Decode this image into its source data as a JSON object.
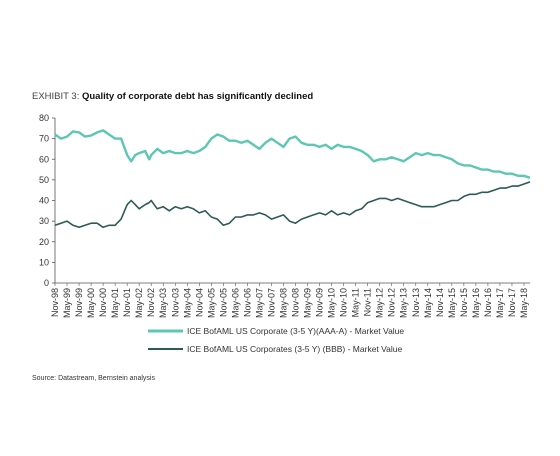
{
  "header": {
    "exhibit_label": "EXHIBIT 3:",
    "exhibit_title": "Quality of corporate debt has significantly declined"
  },
  "source": "Source: Datastream, Bernstein analysis",
  "chart_data": {
    "type": "line",
    "ylim": [
      0,
      80
    ],
    "yticks": [
      0,
      10,
      20,
      30,
      40,
      50,
      60,
      70,
      80
    ],
    "xrange": [
      "1998-11",
      "2018-08"
    ],
    "xticks": [
      "Nov-98",
      "May-99",
      "Nov-99",
      "May-00",
      "Nov-00",
      "May-01",
      "Nov-01",
      "May-02",
      "Nov-02",
      "May-03",
      "Nov-03",
      "May-04",
      "Nov-04",
      "May-05",
      "Nov-05",
      "May-06",
      "Nov-06",
      "May-07",
      "Nov-07",
      "May-08",
      "Nov-08",
      "May-09",
      "Nov-09",
      "May-10",
      "Nov-10",
      "May-11",
      "Nov-11",
      "May-12",
      "Nov-12",
      "May-13",
      "Nov-13",
      "May-14",
      "Nov-14",
      "May-15",
      "Nov-15",
      "May-16",
      "Nov-16",
      "May-17",
      "Nov-17",
      "May-18"
    ],
    "grid": false,
    "legend_position": "bottom",
    "series": [
      {
        "name": "ICE BofAML US Corporate (3-5 Y)(AAA-A) - Market Value",
        "color": "#5cc7b3",
        "points": [
          [
            "1998-11",
            72
          ],
          [
            "1999-02",
            70
          ],
          [
            "1999-05",
            71
          ],
          [
            "1999-08",
            73.5
          ],
          [
            "1999-11",
            73
          ],
          [
            "2000-02",
            71
          ],
          [
            "2000-05",
            71.5
          ],
          [
            "2000-08",
            73
          ],
          [
            "2000-11",
            74
          ],
          [
            "2001-02",
            72
          ],
          [
            "2001-05",
            70
          ],
          [
            "2001-08",
            70
          ],
          [
            "2001-11",
            62
          ],
          [
            "2002-01",
            59
          ],
          [
            "2002-03",
            62
          ],
          [
            "2002-05",
            63
          ],
          [
            "2002-08",
            64
          ],
          [
            "2002-10",
            60
          ],
          [
            "2002-11",
            62
          ],
          [
            "2003-02",
            65
          ],
          [
            "2003-05",
            63
          ],
          [
            "2003-08",
            64
          ],
          [
            "2003-11",
            63
          ],
          [
            "2004-02",
            63
          ],
          [
            "2004-05",
            64
          ],
          [
            "2004-08",
            63
          ],
          [
            "2004-11",
            64
          ],
          [
            "2005-02",
            66
          ],
          [
            "2005-05",
            70
          ],
          [
            "2005-08",
            72
          ],
          [
            "2005-11",
            71
          ],
          [
            "2006-02",
            69
          ],
          [
            "2006-05",
            69
          ],
          [
            "2006-08",
            68
          ],
          [
            "2006-11",
            69
          ],
          [
            "2007-02",
            67
          ],
          [
            "2007-05",
            65
          ],
          [
            "2007-08",
            68
          ],
          [
            "2007-11",
            70
          ],
          [
            "2008-02",
            68
          ],
          [
            "2008-05",
            66
          ],
          [
            "2008-08",
            70
          ],
          [
            "2008-11",
            71
          ],
          [
            "2009-02",
            68
          ],
          [
            "2009-05",
            67
          ],
          [
            "2009-08",
            67
          ],
          [
            "2009-11",
            66
          ],
          [
            "2010-02",
            67
          ],
          [
            "2010-05",
            65
          ],
          [
            "2010-08",
            67
          ],
          [
            "2010-11",
            66
          ],
          [
            "2011-02",
            66
          ],
          [
            "2011-05",
            65
          ],
          [
            "2011-08",
            64
          ],
          [
            "2011-11",
            62
          ],
          [
            "2012-02",
            59
          ],
          [
            "2012-05",
            60
          ],
          [
            "2012-08",
            60
          ],
          [
            "2012-11",
            61
          ],
          [
            "2013-02",
            60
          ],
          [
            "2013-05",
            59
          ],
          [
            "2013-08",
            61
          ],
          [
            "2013-11",
            63
          ],
          [
            "2014-02",
            62
          ],
          [
            "2014-05",
            63
          ],
          [
            "2014-08",
            62
          ],
          [
            "2014-11",
            62
          ],
          [
            "2015-02",
            61
          ],
          [
            "2015-05",
            60
          ],
          [
            "2015-08",
            58
          ],
          [
            "2015-11",
            57
          ],
          [
            "2016-02",
            57
          ],
          [
            "2016-05",
            56
          ],
          [
            "2016-08",
            55
          ],
          [
            "2016-11",
            55
          ],
          [
            "2017-02",
            54
          ],
          [
            "2017-05",
            54
          ],
          [
            "2017-08",
            53
          ],
          [
            "2017-11",
            53
          ],
          [
            "2018-02",
            52
          ],
          [
            "2018-05",
            52
          ],
          [
            "2018-08",
            51
          ]
        ]
      },
      {
        "name": "ICE BofAML US Corporates (3-5 Y) (BBB) - Market Value",
        "color": "#2d5b55",
        "points": [
          [
            "1998-11",
            28
          ],
          [
            "1999-02",
            29
          ],
          [
            "1999-05",
            30
          ],
          [
            "1999-08",
            28
          ],
          [
            "1999-11",
            27
          ],
          [
            "2000-02",
            28
          ],
          [
            "2000-05",
            29
          ],
          [
            "2000-08",
            29
          ],
          [
            "2000-11",
            27
          ],
          [
            "2001-02",
            28
          ],
          [
            "2001-05",
            28
          ],
          [
            "2001-08",
            31
          ],
          [
            "2001-11",
            38
          ],
          [
            "2002-01",
            40
          ],
          [
            "2002-03",
            38
          ],
          [
            "2002-05",
            36
          ],
          [
            "2002-08",
            38
          ],
          [
            "2002-10",
            39
          ],
          [
            "2002-11",
            40
          ],
          [
            "2003-02",
            36
          ],
          [
            "2003-05",
            37
          ],
          [
            "2003-08",
            35
          ],
          [
            "2003-11",
            37
          ],
          [
            "2004-02",
            36
          ],
          [
            "2004-05",
            37
          ],
          [
            "2004-08",
            36
          ],
          [
            "2004-11",
            34
          ],
          [
            "2005-02",
            35
          ],
          [
            "2005-05",
            32
          ],
          [
            "2005-08",
            31
          ],
          [
            "2005-11",
            28
          ],
          [
            "2006-02",
            29
          ],
          [
            "2006-05",
            32
          ],
          [
            "2006-08",
            32
          ],
          [
            "2006-11",
            33
          ],
          [
            "2007-02",
            33
          ],
          [
            "2007-05",
            34
          ],
          [
            "2007-08",
            33
          ],
          [
            "2007-11",
            31
          ],
          [
            "2008-02",
            32
          ],
          [
            "2008-05",
            33
          ],
          [
            "2008-08",
            30
          ],
          [
            "2008-11",
            29
          ],
          [
            "2009-02",
            31
          ],
          [
            "2009-05",
            32
          ],
          [
            "2009-08",
            33
          ],
          [
            "2009-11",
            34
          ],
          [
            "2010-02",
            33
          ],
          [
            "2010-05",
            35
          ],
          [
            "2010-08",
            33
          ],
          [
            "2010-11",
            34
          ],
          [
            "2011-02",
            33
          ],
          [
            "2011-05",
            35
          ],
          [
            "2011-08",
            36
          ],
          [
            "2011-11",
            39
          ],
          [
            "2012-02",
            40
          ],
          [
            "2012-05",
            41
          ],
          [
            "2012-08",
            41
          ],
          [
            "2012-11",
            40
          ],
          [
            "2013-02",
            41
          ],
          [
            "2013-05",
            40
          ],
          [
            "2013-08",
            39
          ],
          [
            "2013-11",
            38
          ],
          [
            "2014-02",
            37
          ],
          [
            "2014-05",
            37
          ],
          [
            "2014-08",
            37
          ],
          [
            "2014-11",
            38
          ],
          [
            "2015-02",
            39
          ],
          [
            "2015-05",
            40
          ],
          [
            "2015-08",
            40
          ],
          [
            "2015-11",
            42
          ],
          [
            "2016-02",
            43
          ],
          [
            "2016-05",
            43
          ],
          [
            "2016-08",
            44
          ],
          [
            "2016-11",
            44
          ],
          [
            "2017-02",
            45
          ],
          [
            "2017-05",
            46
          ],
          [
            "2017-08",
            46
          ],
          [
            "2017-11",
            47
          ],
          [
            "2018-02",
            47
          ],
          [
            "2018-05",
            48
          ],
          [
            "2018-08",
            49
          ]
        ]
      }
    ]
  }
}
